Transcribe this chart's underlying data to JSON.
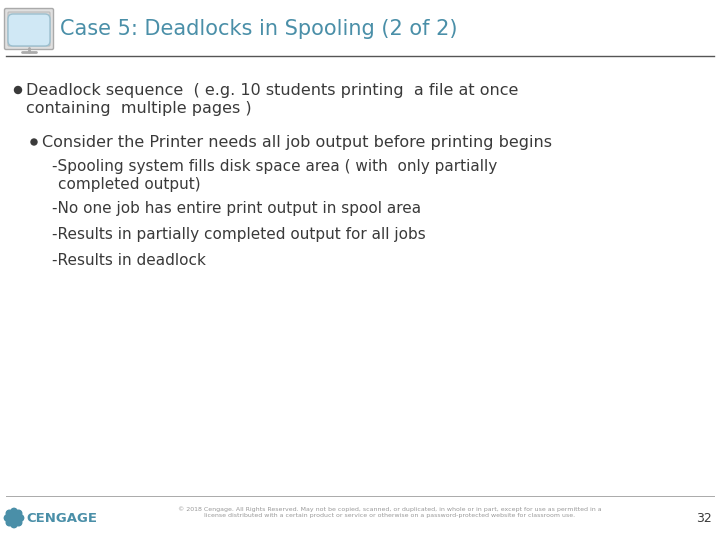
{
  "title": "Case 5: Deadlocks in Spooling (2 of 2)",
  "title_color": "#4a8fa8",
  "background_color": "#ffffff",
  "text_color": "#3a3a3a",
  "cengage_color": "#4a8fa8",
  "cengage_text": "CENGAGE",
  "page_number": "32",
  "footer_text": "© 2018 Cengage. All Rights Reserved. May not be copied, scanned, or duplicated, in whole or in part, except for use as permitted in a\nlicense distributed with a certain product or service or otherwise on a password-protected website for classroom use.",
  "font_family": "DejaVu Sans",
  "title_fontsize": 15,
  "body_fontsize": 11.5,
  "sub_fontsize": 11
}
